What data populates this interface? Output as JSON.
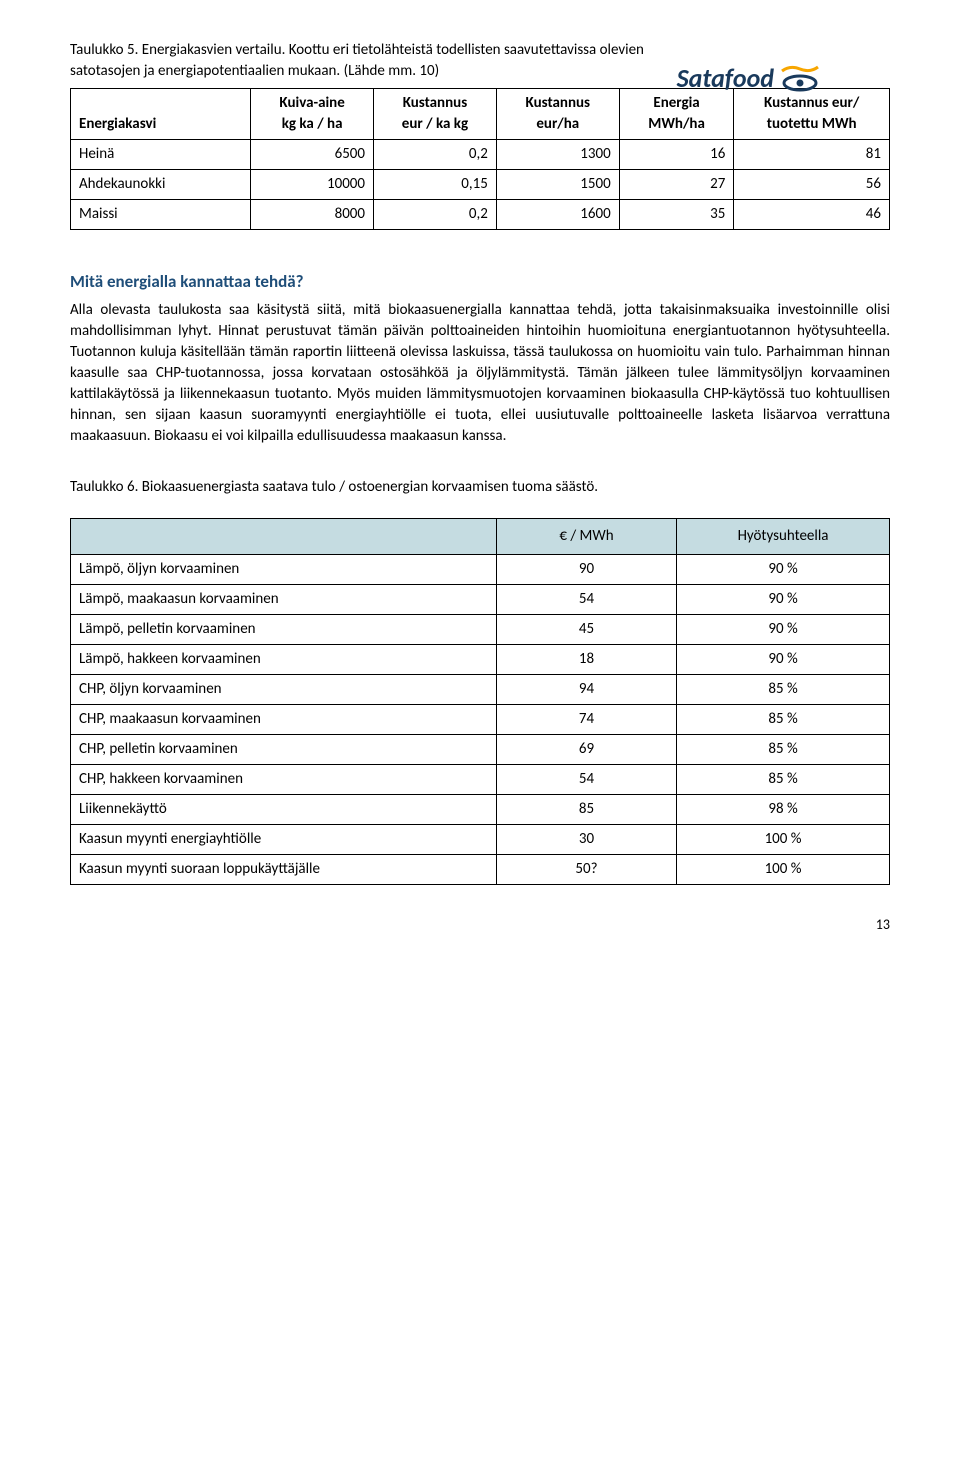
{
  "logo": {
    "text": "Satafood",
    "brand_color_dark": "#1a3a5c",
    "brand_color_accent": "#f7a600"
  },
  "caption1_line1": "Taulukko 5. Energiakasvien vertailu. Koottu eri tietolähteistä todellisten saavutettavissa olevien",
  "caption1_line2": "satotasojen ja energiapotentiaalien mukaan. (Lähde mm. 10)",
  "table1": {
    "headers": [
      {
        "l1": "Energiakasvi",
        "l2": ""
      },
      {
        "l1": "Kuiva-aine",
        "l2": "kg ka / ha"
      },
      {
        "l1": "Kustannus",
        "l2": "eur / ka kg"
      },
      {
        "l1": "Kustannus",
        "l2": "eur/ha"
      },
      {
        "l1": "Energia",
        "l2": "MWh/ha"
      },
      {
        "l1": "Kustannus eur/",
        "l2": "tuotettu MWh"
      }
    ],
    "rows": [
      {
        "label": "Heinä",
        "c1": "6500",
        "c2": "0,2",
        "c3": "1300",
        "c4": "16",
        "c5": "81"
      },
      {
        "label": "Ahdekaunokki",
        "c1": "10000",
        "c2": "0,15",
        "c3": "1500",
        "c4": "27",
        "c5": "56"
      },
      {
        "label": "Maissi",
        "c1": "8000",
        "c2": "0,2",
        "c3": "1600",
        "c4": "35",
        "c5": "46"
      }
    ],
    "col_widths": [
      "22%",
      "15%",
      "15%",
      "15%",
      "14%",
      "19%"
    ],
    "header_bg": "#ffffff"
  },
  "subheading": "Mitä energialla kannattaa tehdä?",
  "body": "Alla olevasta taulukosta saa käsitystä siitä, mitä biokaasuenergialla kannattaa tehdä, jotta takaisinmaksuaika investoinnille olisi mahdollisimman lyhyt. Hinnat perustuvat tämän päivän polttoaineiden hintoihin huomioituna energiantuotannon hyötysuhteella. Tuotannon kuluja käsitellään tämän raportin liitteenä olevissa laskuissa, tässä taulukossa on huomioitu vain tulo. Parhaimman hinnan kaasulle saa CHP-tuotannossa, jossa korvataan ostosähköä ja öljylämmitystä. Tämän jälkeen tulee lämmitysöljyn korvaaminen kattilakäytössä ja liikennekaasun tuotanto. Myös muiden lämmitysmuotojen korvaaminen biokaasulla CHP-käytössä tuo kohtuullisen hinnan, sen sijaan kaasun suoramyynti energiayhtiölle ei tuota, ellei uusiutuvalle polttoaineelle lasketa lisäarvoa verrattuna maakaasuun. Biokaasu ei voi kilpailla edullisuudessa maakaasun kanssa.",
  "caption2": "Taulukko 6. Biokaasuenergiasta saatava tulo / ostoenergian korvaamisen tuoma säästö.",
  "table2": {
    "headers": [
      "",
      "€ / MWh",
      "Hyötysuhteella"
    ],
    "header_bg": "#c5dce1",
    "rows": [
      {
        "label": "Lämpö, öljyn korvaaminen",
        "c1": "90",
        "c2": "90 %"
      },
      {
        "label": "Lämpö, maakaasun korvaaminen",
        "c1": "54",
        "c2": "90 %"
      },
      {
        "label": "Lämpö, pelletin korvaaminen",
        "c1": "45",
        "c2": "90 %"
      },
      {
        "label": "Lämpö, hakkeen korvaaminen",
        "c1": "18",
        "c2": "90 %"
      },
      {
        "label": "CHP, öljyn korvaaminen",
        "c1": "94",
        "c2": "85 %"
      },
      {
        "label": "CHP, maakaasun korvaaminen",
        "c1": "74",
        "c2": "85 %"
      },
      {
        "label": "CHP, pelletin korvaaminen",
        "c1": "69",
        "c2": "85 %"
      },
      {
        "label": "CHP, hakkeen korvaaminen",
        "c1": "54",
        "c2": "85 %"
      },
      {
        "label": "Liikennekäyttö",
        "c1": "85",
        "c2": "98 %"
      },
      {
        "label": "Kaasun myynti energiayhtiölle",
        "c1": "30",
        "c2": "100 %"
      },
      {
        "label": "Kaasun myynti suoraan loppukäyttäjälle",
        "c1": "50?",
        "c2": "100 %"
      }
    ],
    "col_widths": [
      "52%",
      "22%",
      "26%"
    ]
  },
  "page_number": "13"
}
